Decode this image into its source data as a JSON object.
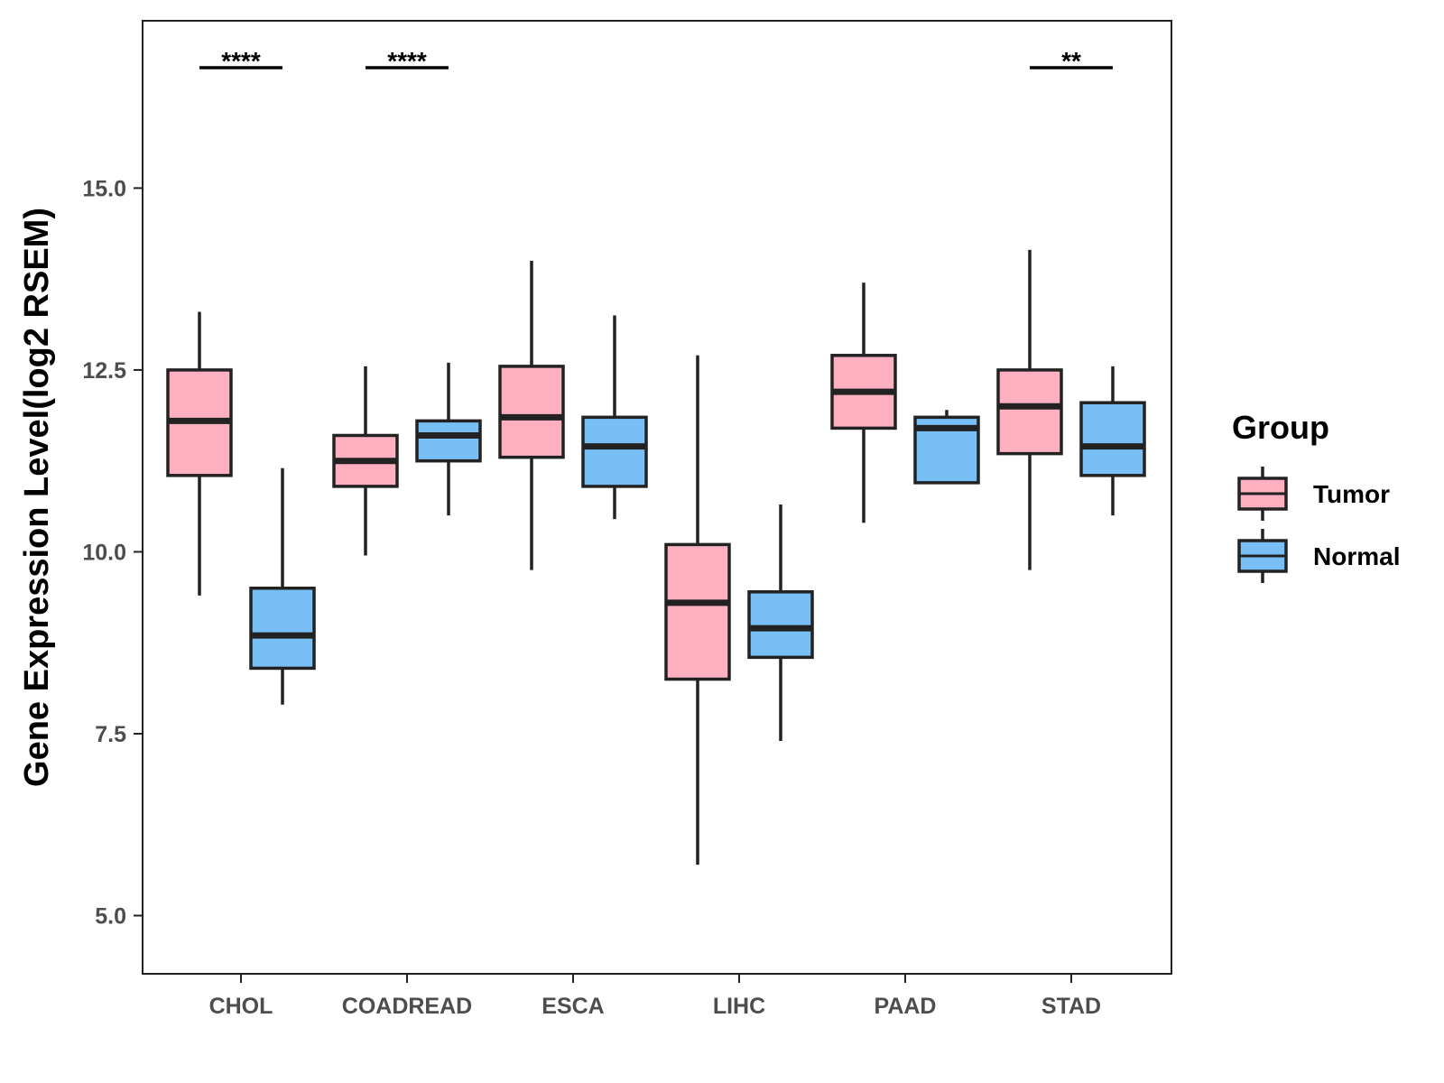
{
  "chart_data": {
    "type": "boxplot",
    "title": "",
    "xlabel": "",
    "ylabel": "Gene Expression Level(log2 RSEM)",
    "ylim": [
      4.2,
      17.3
    ],
    "yticks": [
      5.0,
      7.5,
      10.0,
      12.5,
      15.0
    ],
    "ytick_labels": [
      "5.0",
      "7.5",
      "10.0",
      "12.5",
      "15.0"
    ],
    "categories": [
      "CHOL",
      "COADREAD",
      "ESCA",
      "LIHC",
      "PAAD",
      "STAD"
    ],
    "series": [
      {
        "name": "Tumor",
        "color": "#FFB0C0",
        "boxes": [
          {
            "min": 9.4,
            "q1": 11.05,
            "median": 11.8,
            "q3": 12.5,
            "max": 13.3
          },
          {
            "min": 9.95,
            "q1": 10.9,
            "median": 11.25,
            "q3": 11.6,
            "max": 12.55
          },
          {
            "min": 9.75,
            "q1": 11.3,
            "median": 11.85,
            "q3": 12.55,
            "max": 14.0
          },
          {
            "min": 5.7,
            "q1": 8.25,
            "median": 9.3,
            "q3": 10.1,
            "max": 12.7
          },
          {
            "min": 10.4,
            "q1": 11.7,
            "median": 12.2,
            "q3": 12.7,
            "max": 13.7
          },
          {
            "min": 9.75,
            "q1": 11.35,
            "median": 12.0,
            "q3": 12.5,
            "max": 14.15
          }
        ]
      },
      {
        "name": "Normal",
        "color": "#78BFF5",
        "boxes": [
          {
            "min": 7.9,
            "q1": 8.4,
            "median": 8.85,
            "q3": 9.5,
            "max": 11.15
          },
          {
            "min": 10.5,
            "q1": 11.25,
            "median": 11.6,
            "q3": 11.8,
            "max": 12.6
          },
          {
            "min": 10.45,
            "q1": 10.9,
            "median": 11.45,
            "q3": 11.85,
            "max": 13.25
          },
          {
            "min": 7.4,
            "q1": 8.55,
            "median": 8.95,
            "q3": 9.45,
            "max": 10.65
          },
          {
            "min": 10.95,
            "q1": 10.95,
            "median": 11.7,
            "q3": 11.85,
            "max": 11.95
          },
          {
            "min": 10.5,
            "q1": 11.05,
            "median": 11.45,
            "q3": 12.05,
            "max": 12.55
          }
        ]
      }
    ],
    "significance": [
      {
        "category": "CHOL",
        "label": "****"
      },
      {
        "category": "COADREAD",
        "label": "****"
      },
      {
        "category": "STAD",
        "label": "**"
      }
    ],
    "legend": {
      "title": "Group",
      "position": "right",
      "entries": [
        "Tumor",
        "Normal"
      ]
    }
  },
  "colors": {
    "outline": "#222222",
    "axis": "#222222",
    "tick_label": "#4d4d4d"
  }
}
